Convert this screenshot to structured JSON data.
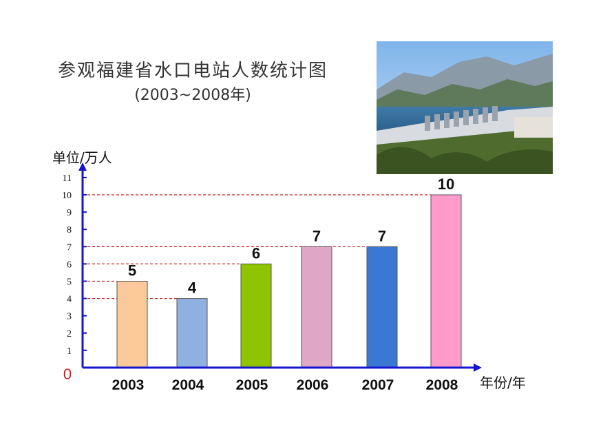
{
  "header": {
    "title": "参观福建省水口电站人数统计图",
    "subtitle": "(2003~2008年)"
  },
  "chart_data": {
    "type": "bar",
    "categories": [
      "2003",
      "2004",
      "2005",
      "2006",
      "2007",
      "2008"
    ],
    "values": [
      5,
      4,
      6,
      7,
      7,
      10
    ],
    "data_labels": [
      "5",
      "4",
      "6",
      "7",
      "7",
      "10"
    ],
    "bar_colors": [
      "#fbc99a",
      "#8fb1e0",
      "#8ec400",
      "#e0a6c6",
      "#3b78d4",
      "#ff9acb"
    ],
    "xlabel": "年份/年",
    "ylabel": "单位/万人",
    "ylim": [
      0,
      11
    ],
    "yticks": [
      "0",
      "1",
      "2",
      "3",
      "4",
      "5",
      "6",
      "7",
      "8",
      "9",
      "10",
      "11"
    ],
    "axis_color": "#1515cf",
    "guide_color": "#d11a1a",
    "grid": false,
    "guide_lines_to_values": [
      4,
      5,
      6,
      7,
      10
    ]
  },
  "image": {
    "subject": "hydro-power-dam-photo"
  }
}
